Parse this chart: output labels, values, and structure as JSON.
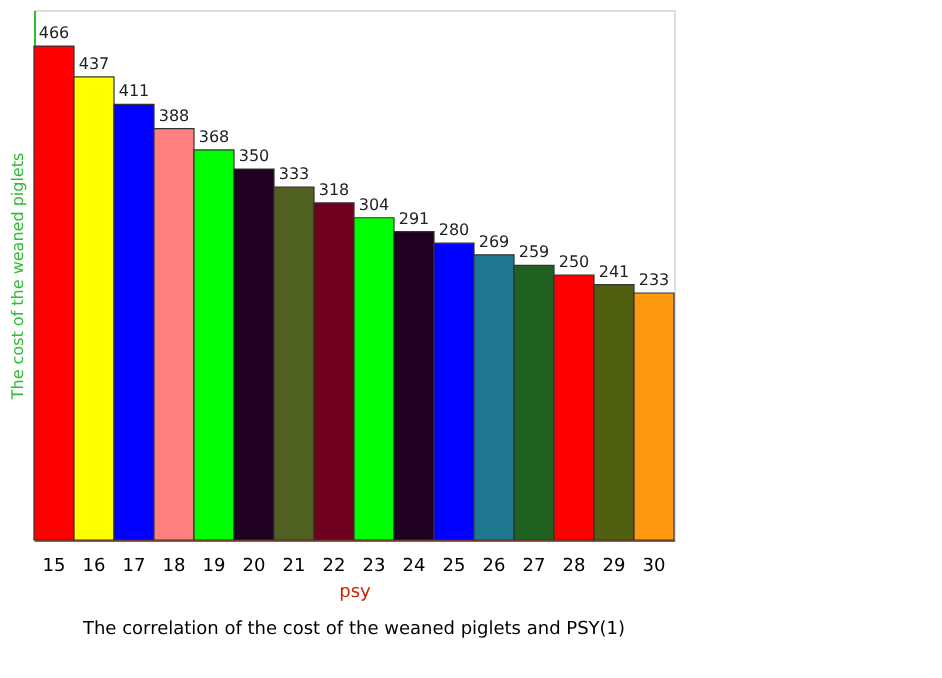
{
  "chart_data": {
    "type": "bar",
    "title": "The correlation of the cost of the weaned piglets and PSY(1)",
    "xlabel": "psy",
    "ylabel": "The cost of the weaned piglets",
    "categories": [
      "15",
      "16",
      "17",
      "18",
      "19",
      "20",
      "21",
      "22",
      "23",
      "24",
      "25",
      "26",
      "27",
      "28",
      "29",
      "30"
    ],
    "values": [
      466,
      437,
      411,
      388,
      368,
      350,
      333,
      318,
      304,
      291,
      280,
      269,
      259,
      250,
      241,
      233
    ],
    "colors": [
      "#ff0000",
      "#ffff00",
      "#0000ff",
      "#ff8080",
      "#00ff00",
      "#200020",
      "#506020",
      "#700020",
      "#00ff00",
      "#200020",
      "#0000ff",
      "#207890",
      "#206020",
      "#ff0000",
      "#506010",
      "#ff9a10"
    ],
    "data_labels": true,
    "tick_labels": "x"
  }
}
